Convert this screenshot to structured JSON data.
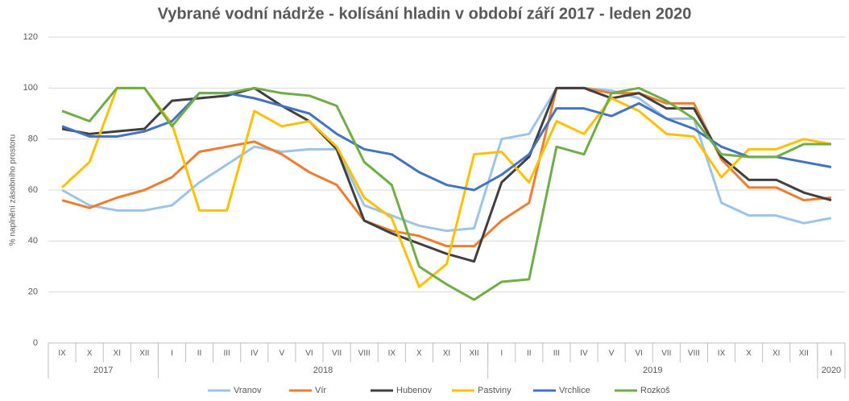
{
  "chart_data": {
    "type": "line",
    "title": "Vybrané vodní nádrže - kolísání hladin v období září 2017 - leden 2020",
    "y_label": "% naplnění zásobního prostoru",
    "categories": [
      "IX",
      "X",
      "XI",
      "XII",
      "I",
      "II",
      "III",
      "IV",
      "V",
      "VI",
      "VII",
      "VIII",
      "IX",
      "X",
      "XI",
      "XII",
      "I",
      "II",
      "III",
      "IV",
      "V",
      "VI",
      "VII",
      "VIII",
      "IX",
      "X",
      "XI",
      "XII",
      "I"
    ],
    "x_groups": [
      {
        "label": "2017",
        "count": 4
      },
      {
        "label": "2018",
        "count": 12
      },
      {
        "label": "2019",
        "count": 12
      },
      {
        "label": "2020",
        "count": 1
      }
    ],
    "ylim": [
      0,
      120
    ],
    "yticks": [
      0,
      20,
      40,
      60,
      80,
      100,
      120
    ],
    "grid": true,
    "legend": "bottom",
    "series": [
      {
        "name": "Vranov",
        "color": "#9dc3e6",
        "values": [
          60,
          54,
          52,
          52,
          54,
          63,
          70,
          77,
          75,
          76,
          76,
          54,
          50,
          46,
          44,
          45,
          80,
          82,
          100,
          100,
          99,
          96,
          88,
          88,
          55,
          50,
          50,
          47,
          49
        ]
      },
      {
        "name": "Vír",
        "color": "#ed7d31",
        "values": [
          56,
          53,
          57,
          60,
          65,
          75,
          77,
          79,
          74,
          67,
          62,
          48,
          44,
          42,
          38,
          38,
          48,
          55,
          100,
          100,
          98,
          98,
          94,
          94,
          72,
          61,
          61,
          56,
          57
        ]
      },
      {
        "name": "Hubenov",
        "color": "#404040",
        "values": [
          84,
          82,
          83,
          84,
          95,
          96,
          97,
          100,
          93,
          87,
          76,
          48,
          43,
          39,
          35,
          32,
          63,
          73,
          100,
          100,
          96,
          98,
          92,
          92,
          73,
          64,
          64,
          59,
          56
        ]
      },
      {
        "name": "Pastviny",
        "color": "#ffc000",
        "values": [
          61,
          71,
          100,
          100,
          86,
          52,
          52,
          91,
          85,
          87,
          77,
          57,
          49,
          22,
          31,
          74,
          75,
          63,
          87,
          82,
          96,
          91,
          82,
          81,
          65,
          76,
          76,
          80,
          78
        ]
      },
      {
        "name": "Vrchlice",
        "color": "#4472c4",
        "values": [
          85,
          81,
          81,
          83,
          87,
          98,
          98,
          96,
          93,
          90,
          82,
          76,
          74,
          67,
          62,
          60,
          66,
          74,
          92,
          92,
          89,
          94,
          88,
          84,
          77,
          73,
          73,
          71,
          69
        ]
      },
      {
        "name": "Rozkoš",
        "color": "#70ad47",
        "values": [
          91,
          87,
          100,
          100,
          85,
          98,
          98,
          100,
          98,
          97,
          93,
          71,
          62,
          30,
          23,
          17,
          24,
          25,
          77,
          74,
          98,
          100,
          95,
          88,
          74,
          73,
          73,
          78,
          78
        ]
      }
    ]
  }
}
